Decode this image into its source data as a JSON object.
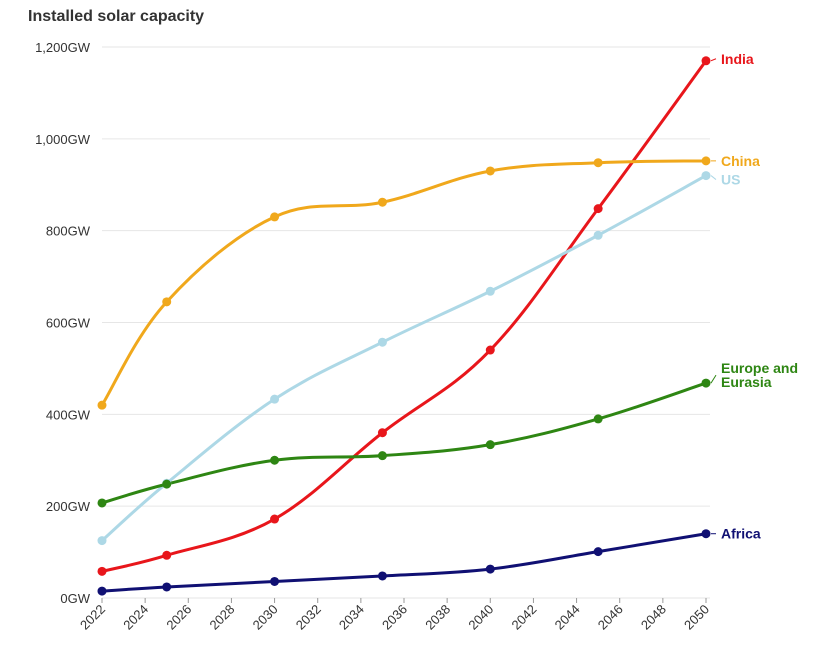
{
  "chart_data": {
    "type": "line",
    "title": "Installed solar capacity",
    "xlabel": "",
    "ylabel": "",
    "xlim": [
      2022,
      2050
    ],
    "ylim": [
      0,
      1200
    ],
    "y_ticks": [
      {
        "value": 0,
        "label": "0GW"
      },
      {
        "value": 200,
        "label": "200GW"
      },
      {
        "value": 400,
        "label": "400GW"
      },
      {
        "value": 600,
        "label": "600GW"
      },
      {
        "value": 800,
        "label": "800GW"
      },
      {
        "value": 1000,
        "label": "1,000GW"
      },
      {
        "value": 1200,
        "label": "1,200GW"
      }
    ],
    "x_ticks": [
      2022,
      2024,
      2026,
      2028,
      2030,
      2032,
      2034,
      2036,
      2038,
      2040,
      2042,
      2044,
      2046,
      2048,
      2050
    ],
    "grid": true,
    "legend": "inline-right",
    "x": [
      2022,
      2025,
      2030,
      2035,
      2040,
      2045,
      2050
    ],
    "series": [
      {
        "name": "India",
        "label": "India",
        "color": "#e8161b",
        "values": [
          58,
          93,
          172,
          360,
          540,
          848,
          1170
        ]
      },
      {
        "name": "China",
        "label": "China",
        "color": "#f0a81c",
        "values": [
          420,
          645,
          830,
          862,
          930,
          948,
          952
        ]
      },
      {
        "name": "US",
        "label": "US",
        "color": "#add8e6",
        "values": [
          125,
          250,
          433,
          557,
          668,
          790,
          920
        ]
      },
      {
        "name": "Europe and Eurasia",
        "label": "Europe and\nEurasia",
        "color": "#2e8613",
        "values": [
          207,
          248,
          300,
          310,
          334,
          390,
          468
        ]
      },
      {
        "name": "Africa",
        "label": "Africa",
        "color": "#101073",
        "values": [
          15,
          24,
          36,
          48,
          63,
          101,
          140
        ]
      }
    ]
  }
}
